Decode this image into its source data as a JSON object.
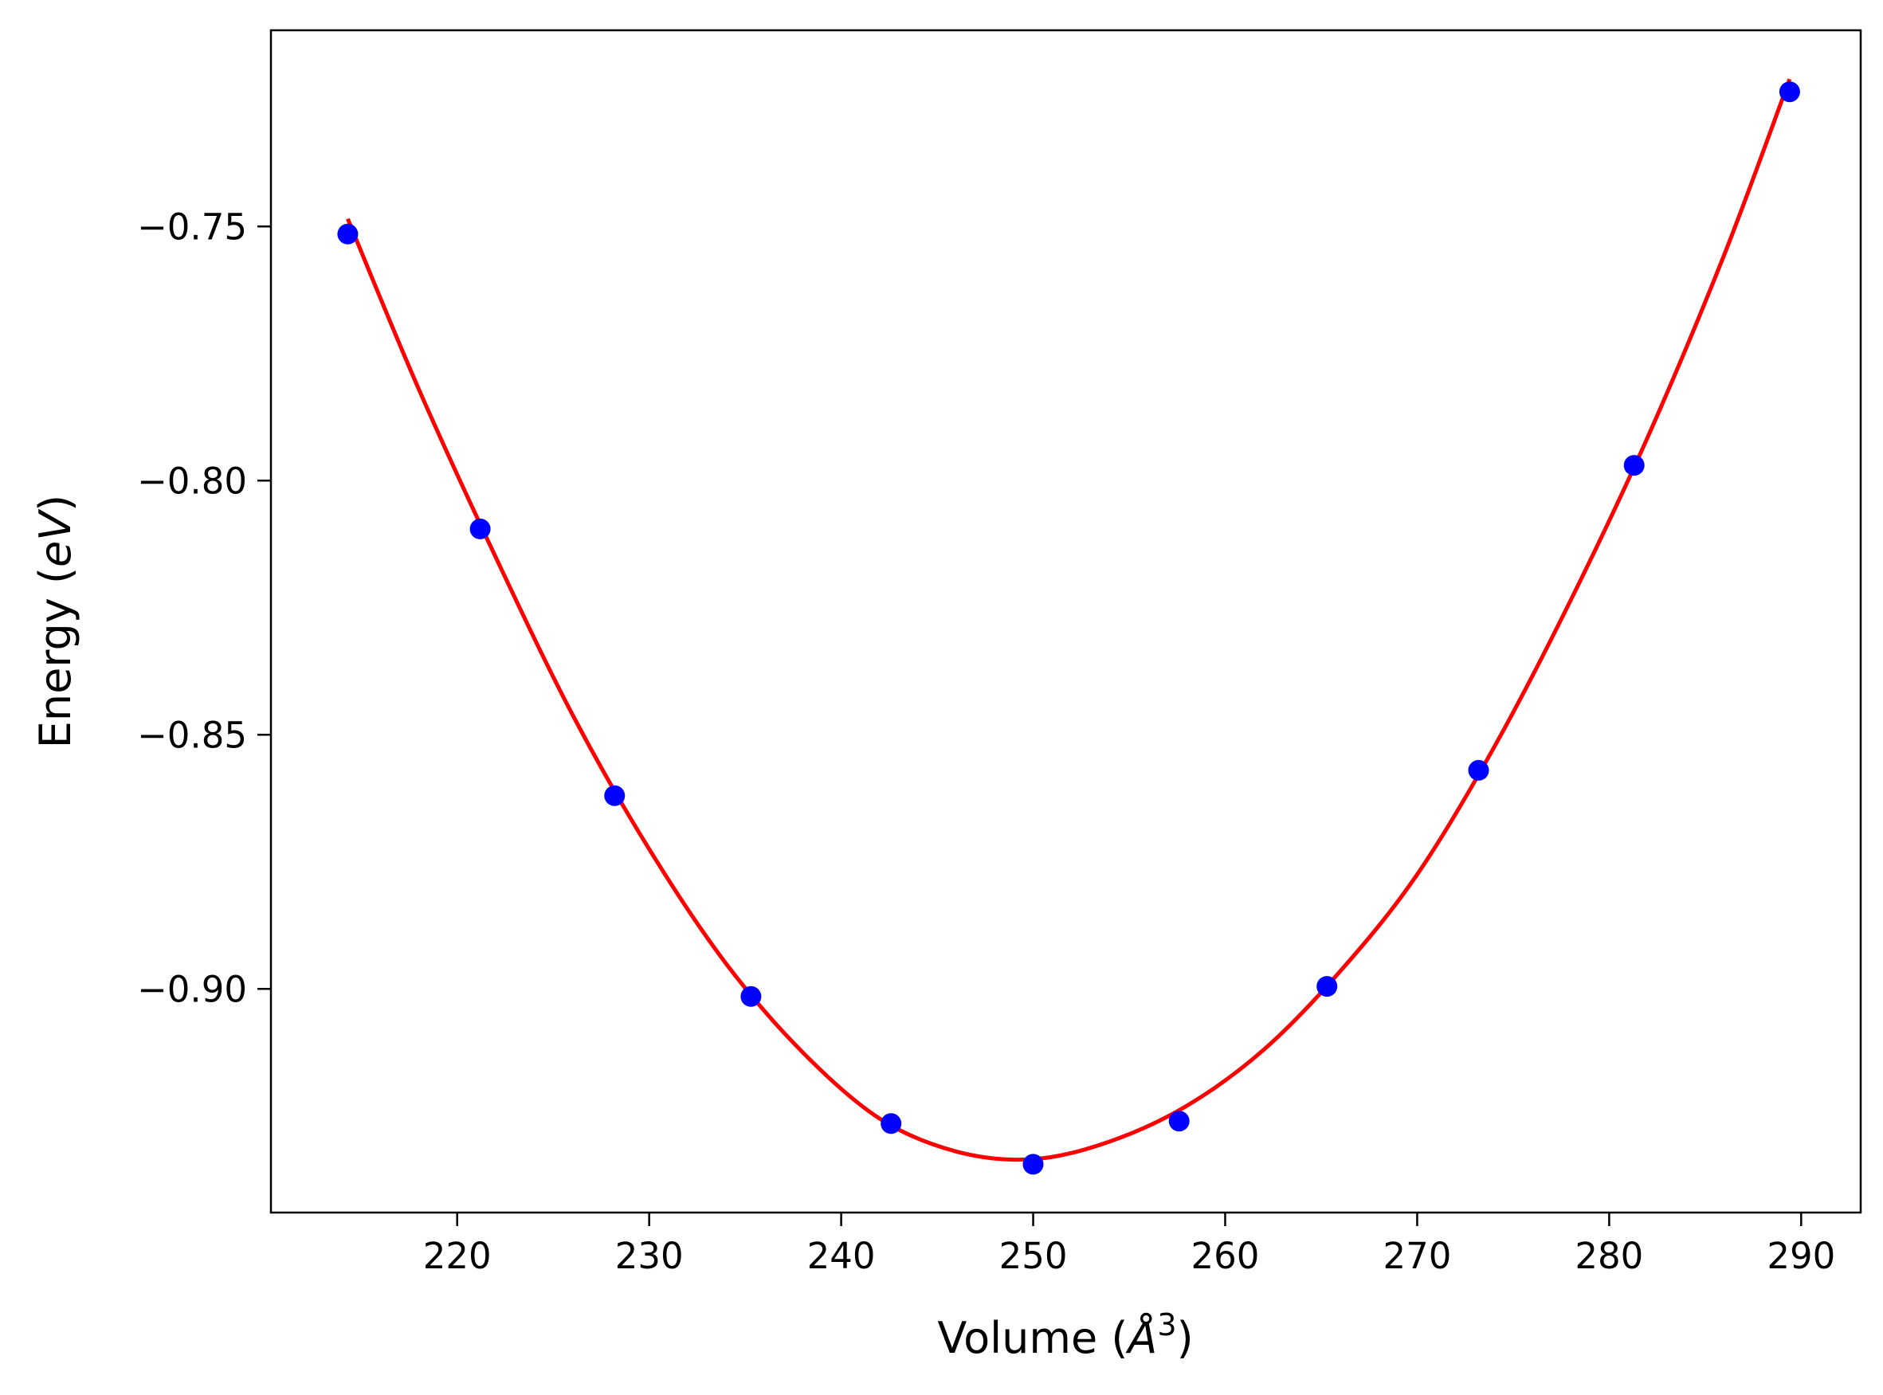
{
  "chart_data": {
    "type": "scatter",
    "title": "",
    "xlabel": {
      "prefix": "Volume (",
      "var": "Å",
      "sup": "3",
      "suffix": ")"
    },
    "ylabel": {
      "prefix": "Energy (",
      "var": "eV",
      "suffix": ")"
    },
    "xlim": [
      210.3,
      293.1
    ],
    "ylim": [
      -0.944,
      -0.7114
    ],
    "xticks": [
      220,
      230,
      240,
      250,
      260,
      270,
      280,
      290
    ],
    "yticks": [
      -0.75,
      -0.8,
      -0.85,
      -0.9
    ],
    "xtick_labels": [
      "220",
      "230",
      "240",
      "250",
      "260",
      "270",
      "280",
      "290"
    ],
    "ytick_labels": [
      "−0.75",
      "−0.80",
      "−0.85",
      "−0.90"
    ],
    "grid": false,
    "legend": null,
    "series": [
      {
        "kind": "points",
        "color": "#0000ff",
        "x": [
          214.3,
          221.2,
          228.2,
          235.3,
          242.6,
          250.0,
          257.6,
          265.3,
          273.2,
          281.3,
          289.4
        ],
        "y": [
          -0.7515,
          -0.8095,
          -0.862,
          -0.9015,
          -0.9265,
          -0.9345,
          -0.926,
          -0.8995,
          -0.857,
          -0.797,
          -0.7235
        ]
      },
      {
        "kind": "fit-line",
        "color": "#ff0000",
        "x": [
          214.3,
          218.0,
          222.0,
          226.0,
          230.0,
          234.0,
          238.0,
          242.0,
          246.0,
          250.0,
          254.0,
          258.0,
          262.0,
          266.0,
          270.0,
          274.0,
          278.0,
          282.0,
          286.0,
          289.4
        ],
        "y": [
          -0.7485,
          -0.782,
          -0.815,
          -0.846,
          -0.8725,
          -0.895,
          -0.9125,
          -0.9255,
          -0.932,
          -0.9335,
          -0.93,
          -0.923,
          -0.912,
          -0.8965,
          -0.8775,
          -0.8525,
          -0.8235,
          -0.7915,
          -0.7555,
          -0.721
        ]
      }
    ]
  }
}
